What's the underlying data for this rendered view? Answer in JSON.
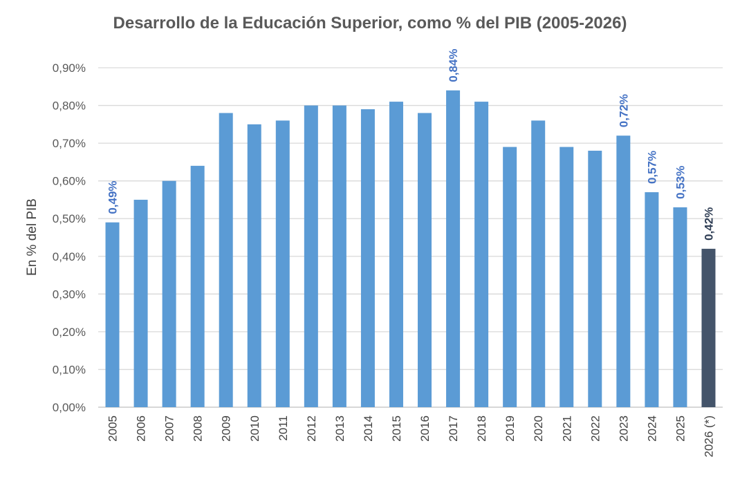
{
  "chart_data": {
    "type": "bar",
    "title": "Desarrollo de la Educación Superior, como % del PIB (2005-2026)",
    "xlabel": "",
    "ylabel": "En % del PIB",
    "ylim": [
      0,
      0.9
    ],
    "yticks": [
      0,
      0.1,
      0.2,
      0.3,
      0.4,
      0.5,
      0.6,
      0.7,
      0.8,
      0.9
    ],
    "ytick_labels": [
      "0,00%",
      "0,10%",
      "0,20%",
      "0,30%",
      "0,40%",
      "0,50%",
      "0,60%",
      "0,70%",
      "0,80%",
      "0,90%"
    ],
    "categories": [
      "2005",
      "2006",
      "2007",
      "2008",
      "2009",
      "2010",
      "2011",
      "2012",
      "2013",
      "2014",
      "2015",
      "2016",
      "2017",
      "2018",
      "2019",
      "2020",
      "2021",
      "2022",
      "2023",
      "2024",
      "2025",
      "2026 (*)"
    ],
    "values": [
      0.49,
      0.55,
      0.6,
      0.64,
      0.78,
      0.75,
      0.76,
      0.8,
      0.8,
      0.79,
      0.81,
      0.78,
      0.84,
      0.81,
      0.69,
      0.76,
      0.69,
      0.68,
      0.72,
      0.57,
      0.53,
      0.42
    ],
    "data_labels": [
      {
        "category": "2005",
        "text": "0,49%"
      },
      {
        "category": "2017",
        "text": "0,84%"
      },
      {
        "category": "2023",
        "text": "0,72%"
      },
      {
        "category": "2024",
        "text": "0,57%"
      },
      {
        "category": "2025",
        "text": "0,53%"
      },
      {
        "category": "2026 (*)",
        "text": "0,42%"
      }
    ],
    "grid": true,
    "legend": "none",
    "colors": {
      "bar": "#5b9bd5",
      "highlight_bar": "#44546a",
      "label": "#4472c4",
      "highlight_label": "#2f3e55",
      "grid": "#d9d9d9"
    },
    "highlight_category": "2026 (*)"
  }
}
